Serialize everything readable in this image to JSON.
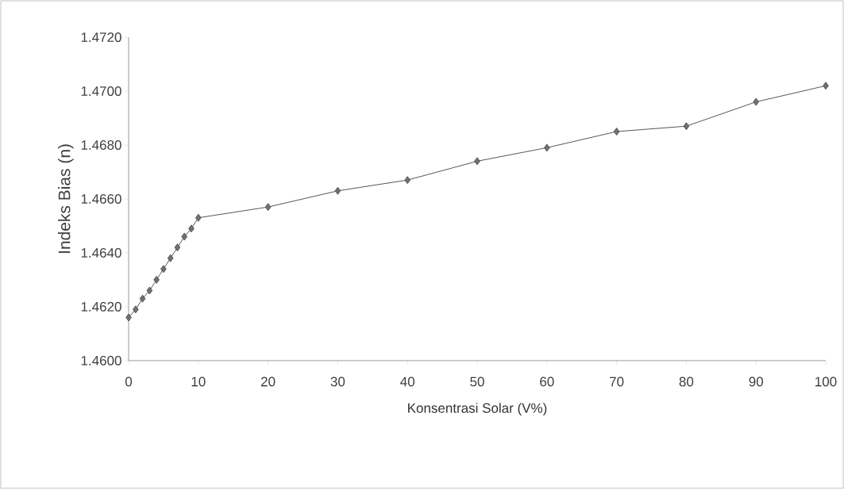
{
  "chart_data": {
    "type": "line",
    "xlabel": "Konsentrasi Solar (V%)",
    "ylabel": "Indeks Bias (n)",
    "x": [
      0,
      1,
      2,
      3,
      4,
      5,
      6,
      7,
      8,
      9,
      10,
      20,
      30,
      40,
      50,
      60,
      70,
      80,
      90,
      100
    ],
    "series": [
      {
        "color": "#707070",
        "values": [
          1.4616,
          1.4619,
          1.4623,
          1.4626,
          1.463,
          1.4634,
          1.4638,
          1.4642,
          1.4646,
          1.4649,
          1.4653,
          1.4657,
          1.4663,
          1.4667,
          1.4674,
          1.4679,
          1.4685,
          1.4687,
          1.4696,
          1.4702
        ]
      }
    ],
    "xlim": [
      0,
      100
    ],
    "xticks": [
      0,
      10,
      20,
      30,
      40,
      50,
      60,
      70,
      80,
      90,
      100
    ],
    "ylim": [
      1.46,
      1.472
    ],
    "yticks": [
      {
        "value": 1.46,
        "label": "1.4600"
      },
      {
        "value": 1.462,
        "label": "1.4620"
      },
      {
        "value": 1.464,
        "label": "1.4640"
      },
      {
        "value": 1.466,
        "label": "1.4660"
      },
      {
        "value": 1.468,
        "label": "1.4680"
      },
      {
        "value": 1.47,
        "label": "1.4700"
      },
      {
        "value": 1.472,
        "label": "1.4720"
      }
    ],
    "marker": "diamond",
    "line_style": "solid",
    "grid": false
  }
}
